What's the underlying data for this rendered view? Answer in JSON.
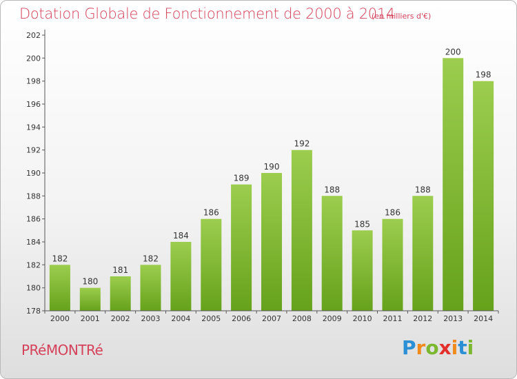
{
  "header": {
    "title": "Dotation Globale de Fonctionnement de 2000 à 2014",
    "unit": "(en milliers d'€)"
  },
  "footer": {
    "commune": "PRéMONTRé",
    "logo_letters": [
      "P",
      "r",
      "o",
      "x",
      "i",
      "t",
      "i"
    ],
    "logo_colors": [
      "#2b8fd6",
      "#f08a1c",
      "#7cb82f",
      "#e4302d",
      "#f08a1c",
      "#2b8fd6",
      "#7cb82f"
    ]
  },
  "chart_data": {
    "type": "bar",
    "title": "Dotation Globale de Fonctionnement de 2000 à 2014",
    "subtitle": "(en milliers d'€)",
    "xlabel": "",
    "ylabel": "",
    "categories": [
      "2000",
      "2001",
      "2002",
      "2003",
      "2004",
      "2005",
      "2006",
      "2007",
      "2008",
      "2009",
      "2010",
      "2011",
      "2012",
      "2013",
      "2014"
    ],
    "values": [
      182,
      180,
      181,
      182,
      184,
      186,
      189,
      190,
      192,
      188,
      185,
      186,
      188,
      200,
      198
    ],
    "ylim": [
      178,
      202
    ],
    "yticks": [
      178,
      180,
      182,
      184,
      186,
      188,
      190,
      192,
      194,
      196,
      198,
      200,
      202
    ],
    "grid": false,
    "legend": "none",
    "colors": {
      "bar_light": "#9ccd4e",
      "bar_dark": "#66a21b",
      "axis": "#555555"
    }
  }
}
